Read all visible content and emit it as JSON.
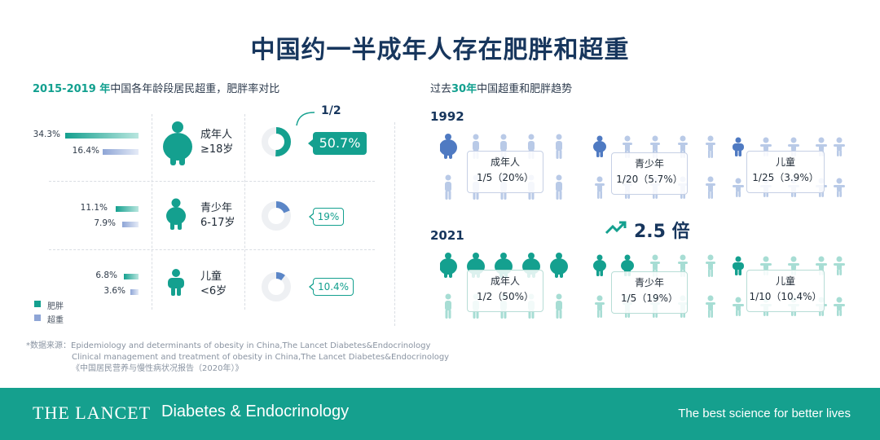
{
  "title": "中国约一半成年人存在肥胖和超重",
  "left_section": {
    "title_highlight": "2015-2019 年",
    "title_rest": "中国各年龄段居民超重，肥胖率对比",
    "rows": [
      {
        "obese_pct": "34.3%",
        "overweight_pct": "16.4%",
        "obese_value": 34.3,
        "overweight_value": 16.4,
        "label1": "成年人",
        "label2": "≥18岁",
        "total_label": "50.7%",
        "total_value": 50.7
      },
      {
        "obese_pct": "11.1%",
        "overweight_pct": "7.9%",
        "obese_value": 11.1,
        "overweight_value": 7.9,
        "label1": "青少年",
        "label2": "6-17岁",
        "total_label": "19%",
        "total_value": 19
      },
      {
        "obese_pct": "6.8%",
        "overweight_pct": "3.6%",
        "obese_value": 6.8,
        "overweight_value": 3.6,
        "label1": "儿童",
        "label2": "<6岁",
        "total_label": "10.4%",
        "total_value": 10.4
      }
    ],
    "one_half": "1/2",
    "legend": {
      "obese": "肥胖",
      "overweight": "超重"
    }
  },
  "right_section": {
    "title_pre": "过去",
    "title_highlight": "30年",
    "title_rest": "中国超重和肥胖趋势",
    "year1": "1992",
    "year2": "2021",
    "multiplier": "2.5 倍",
    "groups_1992": [
      {
        "name": "成年人",
        "ratio": "1/5（20%）",
        "filled": 1.0,
        "total": 5
      },
      {
        "name": "青少年",
        "ratio": "1/20（5.7%）",
        "filled": 0.5,
        "total": 5
      },
      {
        "name": "儿童",
        "ratio": "1/25（3.9%）",
        "filled": 0.5,
        "total": 5
      }
    ],
    "groups_2021": [
      {
        "name": "成年人",
        "ratio": "1/2（50%）",
        "filled": 5,
        "total": 5
      },
      {
        "name": "青少年",
        "ratio": "1/5（19%）",
        "filled": 2,
        "total": 5
      },
      {
        "name": "儿童",
        "ratio": "1/10（10.4%）",
        "filled": 1,
        "total": 5
      }
    ]
  },
  "source": {
    "line1": "*数据来源：Epidemiology and determinants of obesity in China,The Lancet Diabetes&Endocrinology",
    "line2": "Clinical management and treatment of obesity in China,The Lancet Diabetes&Endocrinology",
    "line3": "《中国居民营养与慢性病状况报告（2020年）》"
  },
  "footer": {
    "brand": "THE LANCET",
    "journal": "Diabetes & Endocrinology",
    "tagline": "The best science for better lives"
  },
  "colors": {
    "teal": "#14a08f",
    "blue": "#5b7fc6",
    "light_teal": "#a7ddd4",
    "light_blue": "#c7d3ec",
    "navy": "#17365d"
  }
}
